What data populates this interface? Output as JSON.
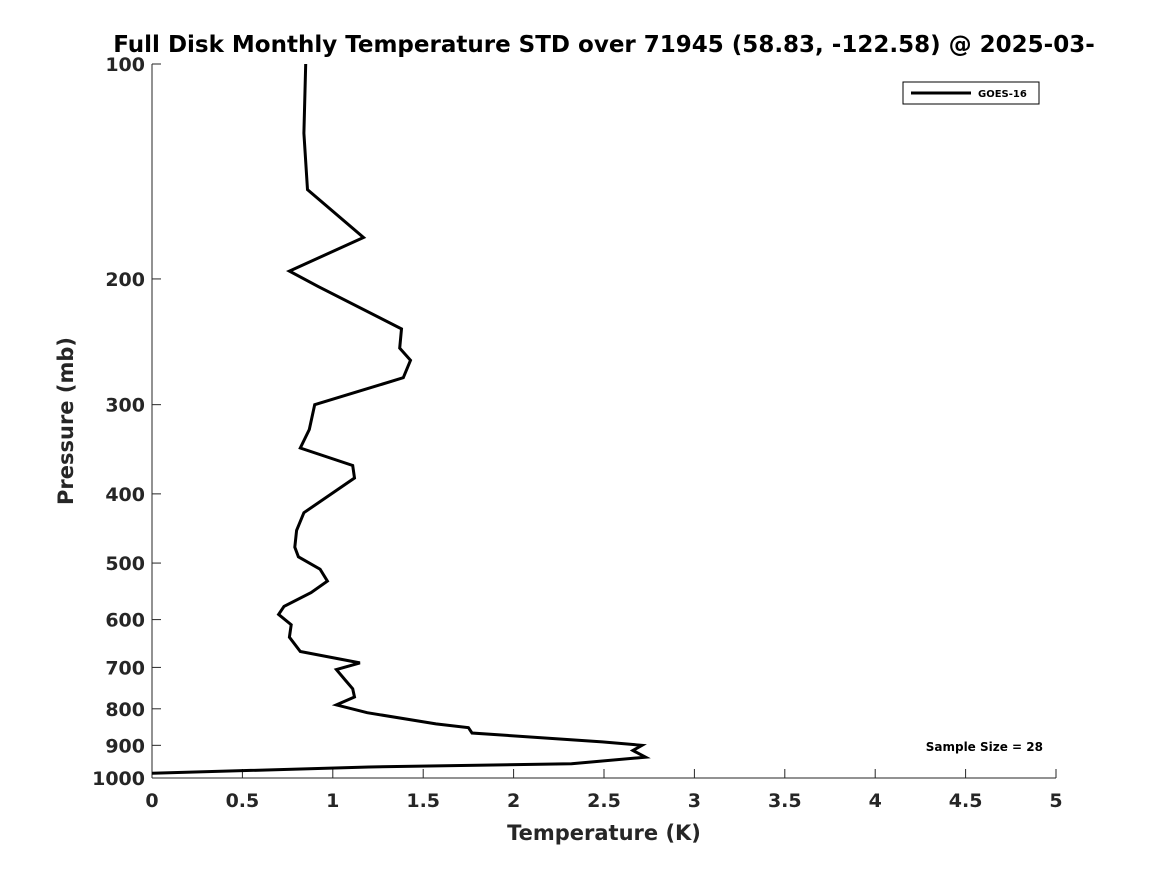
{
  "chart_data": {
    "type": "line",
    "title": "Full Disk Monthly Temperature STD over 71945 (58.83, -122.58) @ 2025-03-",
    "xlabel": "Temperature (K)",
    "ylabel": "Pressure (mb)",
    "xlim": [
      0,
      5
    ],
    "ylim": [
      100,
      1000
    ],
    "y_scale": "log",
    "y_reversed": true,
    "x_ticks": [
      "0",
      "0.5",
      "1",
      "1.5",
      "2",
      "2.5",
      "3",
      "3.5",
      "4",
      "4.5",
      "5"
    ],
    "y_ticks": [
      "100",
      "200",
      "300",
      "400",
      "500",
      "600",
      "700",
      "800",
      "900",
      "1000"
    ],
    "grid": false,
    "legend": {
      "position": "top-right",
      "entries": [
        "GOES-16"
      ]
    },
    "annotation": "Sample Size = 28",
    "color": "#000000",
    "series": [
      {
        "name": "GOES-16",
        "points": [
          [
            0.85,
            100
          ],
          [
            0.84,
            125
          ],
          [
            0.86,
            150
          ],
          [
            1.17,
            175
          ],
          [
            0.76,
            195
          ],
          [
            0.92,
            205
          ],
          [
            1.38,
            235
          ],
          [
            1.37,
            250
          ],
          [
            1.43,
            260
          ],
          [
            1.39,
            275
          ],
          [
            0.9,
            300
          ],
          [
            0.87,
            325
          ],
          [
            0.82,
            345
          ],
          [
            1.11,
            365
          ],
          [
            1.12,
            380
          ],
          [
            0.84,
            425
          ],
          [
            0.8,
            450
          ],
          [
            0.79,
            475
          ],
          [
            0.81,
            490
          ],
          [
            0.93,
            510
          ],
          [
            0.97,
            530
          ],
          [
            0.88,
            550
          ],
          [
            0.73,
            575
          ],
          [
            0.7,
            590
          ],
          [
            0.77,
            610
          ],
          [
            0.76,
            635
          ],
          [
            0.82,
            665
          ],
          [
            1.15,
            690
          ],
          [
            1.02,
            705
          ],
          [
            1.07,
            730
          ],
          [
            1.11,
            750
          ],
          [
            1.12,
            770
          ],
          [
            1.02,
            790
          ],
          [
            1.19,
            810
          ],
          [
            1.57,
            840
          ],
          [
            1.75,
            850
          ],
          [
            1.77,
            865
          ],
          [
            2.49,
            890
          ],
          [
            2.71,
            900
          ],
          [
            2.66,
            915
          ],
          [
            2.73,
            935
          ],
          [
            2.32,
            955
          ],
          [
            1.2,
            965
          ],
          [
            0.0,
            985
          ]
        ]
      }
    ]
  }
}
